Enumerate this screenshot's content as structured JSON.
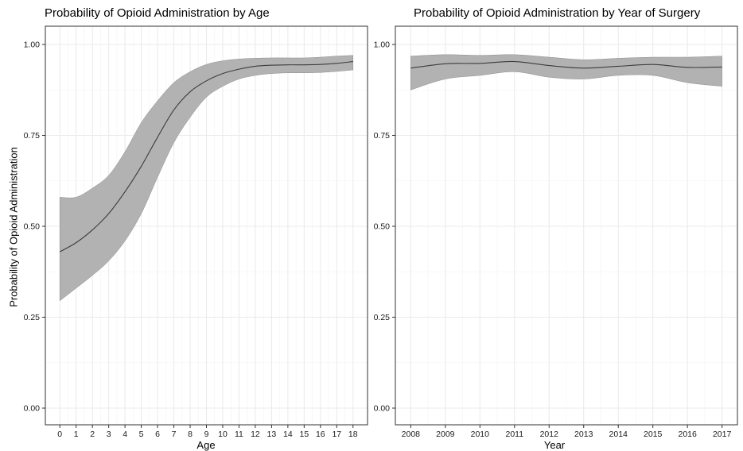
{
  "chart_data": [
    {
      "type": "line",
      "title": "Probability of Opioid Administration by Age",
      "xlabel": "Age",
      "ylabel": "Probability of Opioid Administration",
      "xlim": [
        0,
        18
      ],
      "ylim": [
        0,
        1
      ],
      "x_ticks": [
        "0",
        "1",
        "2",
        "3",
        "4",
        "5",
        "6",
        "7",
        "8",
        "9",
        "10",
        "11",
        "12",
        "13",
        "14",
        "15",
        "16",
        "17",
        "18"
      ],
      "y_ticks": [
        "0.00",
        "0.25",
        "0.50",
        "0.75",
        "1.00"
      ],
      "grid": true,
      "series": [
        {
          "x": [
            0,
            1,
            2,
            3,
            4,
            5,
            6,
            7,
            8,
            9,
            10,
            11,
            12,
            13,
            14,
            15,
            16,
            17,
            18
          ],
          "y": [
            0.43,
            0.455,
            0.49,
            0.535,
            0.595,
            0.665,
            0.745,
            0.82,
            0.87,
            0.9,
            0.92,
            0.932,
            0.94,
            0.943,
            0.944,
            0.944,
            0.945,
            0.948,
            0.953
          ],
          "lower": [
            0.295,
            0.33,
            0.365,
            0.405,
            0.46,
            0.535,
            0.635,
            0.73,
            0.8,
            0.855,
            0.885,
            0.905,
            0.915,
            0.92,
            0.922,
            0.922,
            0.923,
            0.926,
            0.93
          ],
          "upper": [
            0.58,
            0.58,
            0.605,
            0.64,
            0.705,
            0.785,
            0.845,
            0.895,
            0.925,
            0.945,
            0.955,
            0.96,
            0.962,
            0.963,
            0.963,
            0.963,
            0.965,
            0.968,
            0.97
          ]
        }
      ]
    },
    {
      "type": "line",
      "title": "Probability of Opioid Administration by Year of Surgery",
      "xlabel": "Year",
      "ylabel": "",
      "xlim": [
        2008,
        2017
      ],
      "ylim": [
        0,
        1
      ],
      "x_ticks": [
        "2008",
        "2009",
        "2010",
        "2011",
        "2012",
        "2013",
        "2014",
        "2015",
        "2016",
        "2017"
      ],
      "y_ticks": [
        "0.00",
        "0.25",
        "0.50",
        "0.75",
        "1.00"
      ],
      "grid": true,
      "series": [
        {
          "x": [
            2008,
            2009,
            2010,
            2011,
            2012,
            2013,
            2014,
            2015,
            2016,
            2017
          ],
          "y": [
            0.935,
            0.947,
            0.948,
            0.953,
            0.942,
            0.935,
            0.94,
            0.945,
            0.937,
            0.938
          ],
          "lower": [
            0.875,
            0.905,
            0.915,
            0.925,
            0.91,
            0.905,
            0.915,
            0.915,
            0.895,
            0.885
          ],
          "upper": [
            0.968,
            0.972,
            0.97,
            0.972,
            0.965,
            0.958,
            0.962,
            0.965,
            0.965,
            0.968
          ]
        }
      ]
    }
  ],
  "colors": {
    "ribbon": "#b2b2b2",
    "ribbon_edge": "#8c8c8c",
    "line": "#3c3c3c",
    "grid": "#ebebeb",
    "border": "#333333"
  }
}
